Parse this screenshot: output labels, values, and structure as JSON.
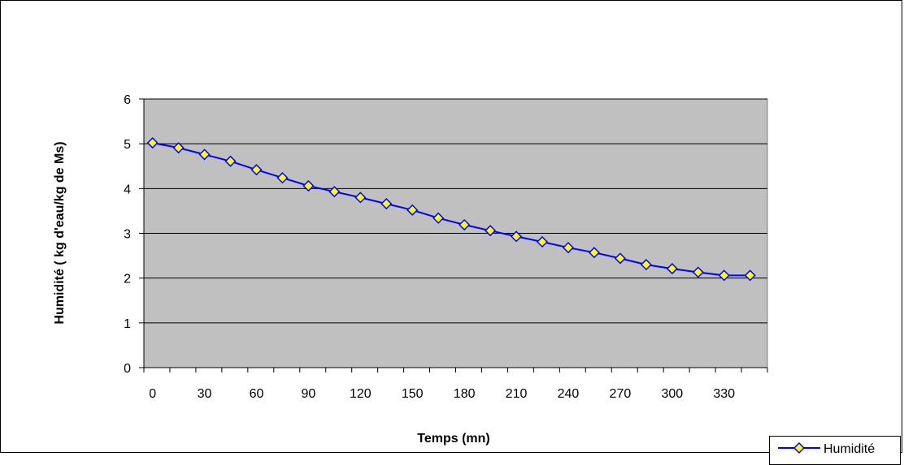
{
  "chart_data": {
    "type": "line",
    "title": "",
    "xlabel": "Temps (mn)",
    "ylabel": "Humidité  ( kg d'eau/kg de Ms)",
    "x_ticks": [
      "0",
      "30",
      "60",
      "90",
      "120",
      "150",
      "180",
      "210",
      "240",
      "270",
      "300",
      "330"
    ],
    "y_ticks": [
      "0",
      "1",
      "2",
      "3",
      "4",
      "5",
      "6"
    ],
    "ylim": [
      0,
      6
    ],
    "xlim": [
      -5,
      355
    ],
    "grid": "horizontal",
    "legend_position": "bottom-right",
    "plot_background": "#c0c0c0",
    "series": [
      {
        "name": "Humidité",
        "color": "#0000ff",
        "marker": "diamond",
        "marker_color": "#ffff00",
        "x": [
          0,
          15,
          30,
          45,
          60,
          75,
          90,
          105,
          120,
          135,
          150,
          165,
          180,
          195,
          210,
          225,
          240,
          255,
          270,
          285,
          300,
          315,
          330,
          345
        ],
        "values": [
          5.02,
          4.91,
          4.76,
          4.61,
          4.42,
          4.24,
          4.06,
          3.93,
          3.8,
          3.66,
          3.52,
          3.34,
          3.19,
          3.06,
          2.93,
          2.81,
          2.68,
          2.57,
          2.44,
          2.3,
          2.21,
          2.13,
          2.06,
          2.06
        ]
      }
    ]
  }
}
